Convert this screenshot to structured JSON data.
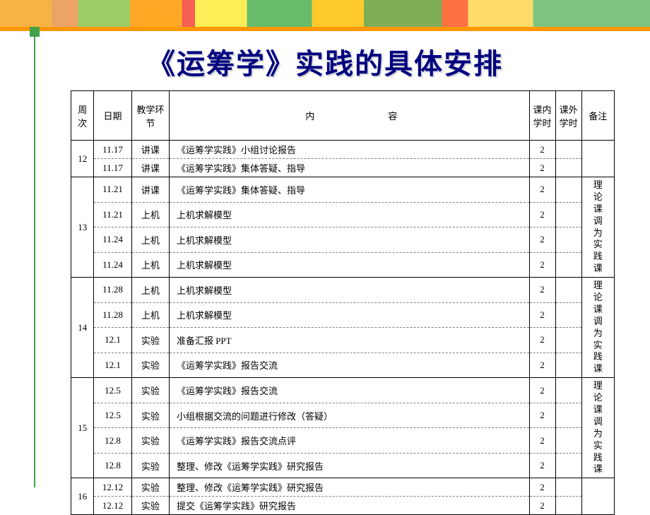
{
  "title": "《运筹学》实践的具体安排",
  "headers": {
    "week": "周次",
    "date": "日期",
    "type": "教学环节",
    "content": "内　　　　　　　　容",
    "inClass": "课内学时",
    "outClass": "课外学时",
    "note": "备注"
  },
  "groups": [
    {
      "week": "12",
      "note": "",
      "rows": [
        {
          "date": "11.17",
          "type": "讲课",
          "content": "《运筹学实践》小组讨论报告",
          "in": "2",
          "out": ""
        },
        {
          "date": "11.17",
          "type": "讲课",
          "content": "《运筹学实践》集体答疑、指导",
          "in": "2",
          "out": ""
        }
      ]
    },
    {
      "week": "13",
      "note": "理论课调为实践课",
      "rows": [
        {
          "date": "11.21",
          "type": "讲课",
          "content": "《运筹学实践》集体答疑、指导",
          "in": "2",
          "out": ""
        },
        {
          "date": "11.21",
          "type": "上机",
          "content": "上机求解模型",
          "in": "2",
          "out": ""
        },
        {
          "date": "11.24",
          "type": "上机",
          "content": "上机求解模型",
          "in": "2",
          "out": ""
        },
        {
          "date": "11.24",
          "type": "上机",
          "content": "上机求解模型",
          "in": "2",
          "out": ""
        }
      ]
    },
    {
      "week": "14",
      "note": "理论课调为实践课",
      "rows": [
        {
          "date": "11.28",
          "type": "上机",
          "content": "上机求解模型",
          "in": "2",
          "out": ""
        },
        {
          "date": "11.28",
          "type": "上机",
          "content": "上机求解模型",
          "in": "2",
          "out": ""
        },
        {
          "date": "12.1",
          "type": "实验",
          "content": "准备汇报 PPT",
          "in": "2",
          "out": ""
        },
        {
          "date": "12.1",
          "type": "实验",
          "content": "《运筹学实践》报告交流",
          "in": "2",
          "out": ""
        }
      ]
    },
    {
      "week": "15",
      "note": "理论课调为实践课",
      "rows": [
        {
          "date": "12.5",
          "type": "实验",
          "content": "《运筹学实践》报告交流",
          "in": "2",
          "out": ""
        },
        {
          "date": "12.5",
          "type": "实验",
          "content": "小组根据交流的问题进行修改（答疑）",
          "in": "2",
          "out": ""
        },
        {
          "date": "12.8",
          "type": "实验",
          "content": "《运筹学实践》报告交流点评",
          "in": "2",
          "out": ""
        },
        {
          "date": "12.8",
          "type": "实验",
          "content": "整理、修改《运筹学实践》研究报告",
          "in": "2",
          "out": ""
        }
      ]
    },
    {
      "week": "16",
      "note": "",
      "rows": [
        {
          "date": "12.12",
          "type": "实验",
          "content": "整理、修改《运筹学实践》研究报告",
          "in": "2",
          "out": ""
        },
        {
          "date": "12.12",
          "type": "实验",
          "content": "提交《运筹学实践》研究报告",
          "in": "2",
          "out": ""
        }
      ]
    }
  ],
  "colors": {
    "title": "#000080",
    "border": "#000000",
    "accent": "#ff9800",
    "sideline": "#43a047"
  }
}
